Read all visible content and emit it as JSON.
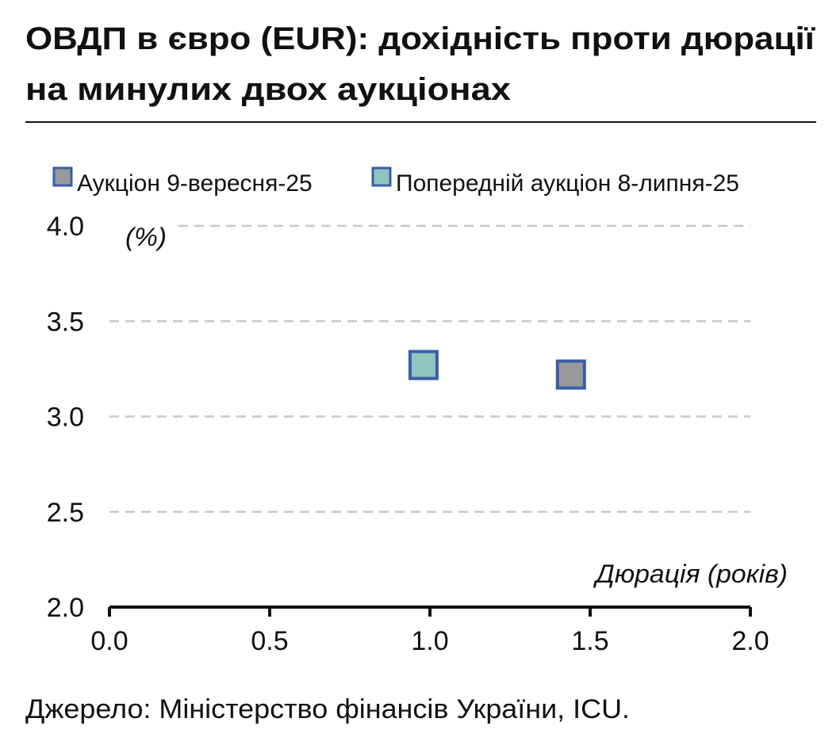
{
  "chart_data": {
    "type": "scatter",
    "title": "ОВДП в євро (EUR): дохідність проти дюрації",
    "subtitle": "на минулих двох аукціонах",
    "series": [
      {
        "name": "Аукціон 9-вересня-25",
        "color": "#999999",
        "x": [
          1.44
        ],
        "values": [
          3.22
        ]
      },
      {
        "name": "Попередній аукціон 8-липня-25",
        "color": "#8fc4bf",
        "x": [
          0.98
        ],
        "values": [
          3.27
        ]
      }
    ],
    "marker_edge_color": "#3a5ea8",
    "xlim": [
      0,
      2
    ],
    "xticks": [
      {
        "value": 0,
        "label": "0.0"
      },
      0.5,
      {
        "value": 1,
        "label": "1.0"
      },
      1.5,
      {
        "value": 2,
        "label": "2.0"
      }
    ],
    "ylim": [
      2,
      4
    ],
    "yticks": [
      {
        "value": 2,
        "label": "2.0"
      },
      2.5,
      {
        "value": 3,
        "label": "3.0"
      },
      3.5,
      {
        "value": 4,
        "label": "4.0"
      }
    ],
    "ylabel": "(%)",
    "xlabel": "Дюрація (років)",
    "grid": true,
    "source": "Джерело: Міністерство фінансів України, ICU."
  }
}
